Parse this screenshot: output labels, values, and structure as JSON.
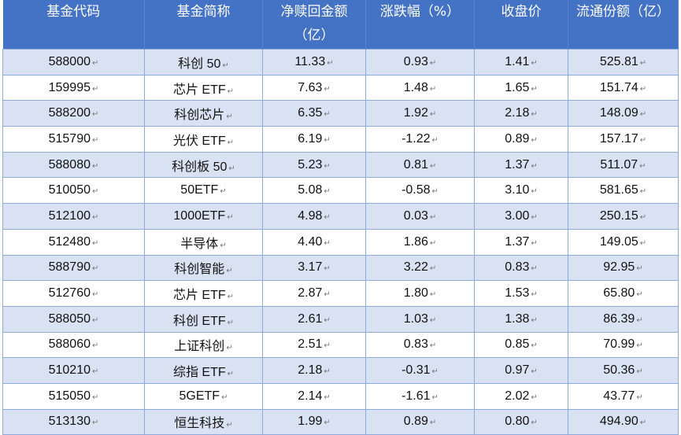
{
  "table": {
    "headers": [
      "基金代码",
      "基金简称",
      "净赎回金额（亿）",
      "涨跌幅（%）",
      "收盘价",
      "流通份额（亿）"
    ],
    "rows": [
      [
        "588000",
        "科创 50",
        "11.33",
        "0.93",
        "1.41",
        "525.81"
      ],
      [
        "159995",
        "芯片 ETF",
        "7.63",
        "1.48",
        "1.65",
        "151.74"
      ],
      [
        "588200",
        "科创芯片",
        "6.35",
        "1.92",
        "2.18",
        "148.09"
      ],
      [
        "515790",
        "光伏 ETF",
        "6.19",
        "-1.22",
        "0.89",
        "157.17"
      ],
      [
        "588080",
        "科创板 50",
        "5.23",
        "0.81",
        "1.37",
        "511.07"
      ],
      [
        "510050",
        "50ETF",
        "5.08",
        "-0.58",
        "3.10",
        "581.65"
      ],
      [
        "512100",
        "1000ETF",
        "4.98",
        "0.03",
        "3.00",
        "250.15"
      ],
      [
        "512480",
        "半导体",
        "4.40",
        "1.86",
        "1.37",
        "149.05"
      ],
      [
        "588790",
        "科创智能",
        "3.17",
        "3.22",
        "0.83",
        "92.95"
      ],
      [
        "512760",
        "芯片 ETF",
        "2.87",
        "1.80",
        "1.53",
        "65.80"
      ],
      [
        "588050",
        "科创 ETF",
        "2.61",
        "1.03",
        "1.38",
        "86.39"
      ],
      [
        "588060",
        "上证科创",
        "2.51",
        "0.83",
        "0.85",
        "70.99"
      ],
      [
        "510210",
        "综指 ETF",
        "2.18",
        "-0.31",
        "0.97",
        "50.36"
      ],
      [
        "515050",
        "5GETF",
        "2.14",
        "-1.61",
        "2.02",
        "43.77"
      ],
      [
        "513130",
        "恒生科技",
        "1.99",
        "0.89",
        "0.80",
        "494.90"
      ]
    ]
  }
}
